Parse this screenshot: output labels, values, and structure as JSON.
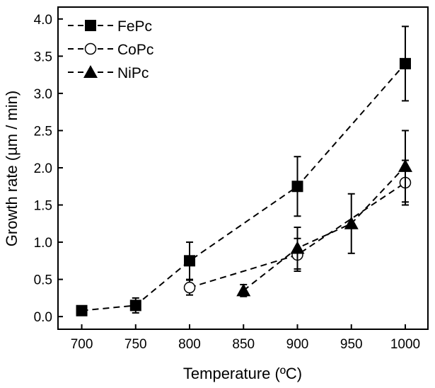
{
  "chart_data": {
    "type": "line",
    "title": "",
    "xlabel": "Temperature (ºC)",
    "ylabel": "Growth rate (µm / min)",
    "xlim": [
      678,
      1021
    ],
    "ylim": [
      -0.17,
      4.16
    ],
    "xticks": [
      700,
      750,
      800,
      850,
      900,
      950,
      1000
    ],
    "yticks": [
      0.0,
      0.5,
      1.0,
      1.5,
      2.0,
      2.5,
      3.0,
      3.5,
      4.0
    ],
    "xtick_labels": [
      "700",
      "750",
      "800",
      "850",
      "900",
      "950",
      "1000"
    ],
    "ytick_labels": [
      "0.0",
      "0.5",
      "1.0",
      "1.5",
      "2.0",
      "2.5",
      "3.0",
      "3.5",
      "4.0"
    ],
    "legend_position": "top-left",
    "grid": false,
    "series": [
      {
        "name": "FePc",
        "marker": "square",
        "x": [
          700,
          750,
          800,
          900,
          1000
        ],
        "y": [
          0.08,
          0.15,
          0.75,
          1.75,
          3.4
        ],
        "err": [
          0.0,
          0.1,
          0.25,
          0.4,
          0.5
        ]
      },
      {
        "name": "CoPc",
        "marker": "circle",
        "x": [
          800,
          900,
          1000
        ],
        "y": [
          0.39,
          0.83,
          1.8
        ],
        "err": [
          0.1,
          0.22,
          0.3
        ]
      },
      {
        "name": "NiPc",
        "marker": "triangle",
        "x": [
          850,
          900,
          950,
          1000
        ],
        "y": [
          0.35,
          0.92,
          1.25,
          2.02
        ],
        "err": [
          0.08,
          0.28,
          0.4,
          0.48
        ]
      }
    ]
  }
}
